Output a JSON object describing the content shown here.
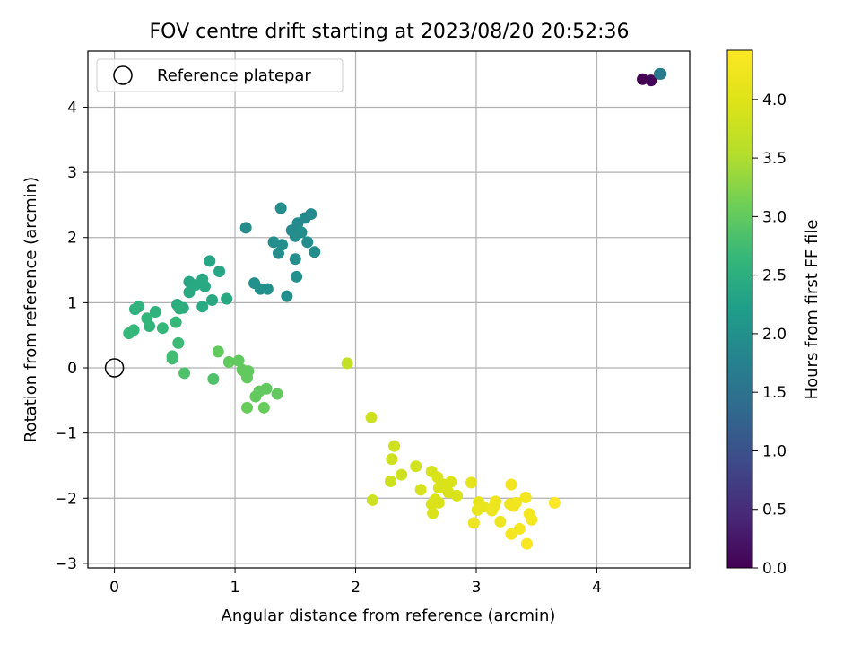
{
  "chart_data": {
    "type": "scatter",
    "title": "FOV centre drift starting at 2023/08/20 20:52:36",
    "xlabel": "Angular distance from reference (arcmin)",
    "ylabel": "Rotation from reference (arcmin)",
    "xlim": [
      -0.22,
      4.77
    ],
    "ylim": [
      -3.07,
      4.86
    ],
    "xticks": [
      0,
      1,
      2,
      3,
      4
    ],
    "xtick_labels": [
      "0",
      "1",
      "2",
      "3",
      "4"
    ],
    "yticks": [
      -3,
      -2,
      -1,
      0,
      1,
      2,
      3,
      4
    ],
    "ytick_labels": [
      "−3",
      "−2",
      "−1",
      "0",
      "1",
      "2",
      "3",
      "4"
    ],
    "grid": true,
    "legend": {
      "position": "upper-left",
      "entries": [
        "Reference platepar"
      ]
    },
    "reference_point": {
      "x": 0,
      "y": 0,
      "marker": "open-circle"
    },
    "colorbar": {
      "label": "Hours from first FF file",
      "range": [
        0,
        4.42
      ],
      "ticks": [
        0,
        0.5,
        1,
        1.5,
        2,
        2.5,
        3,
        3.5,
        4
      ],
      "tick_labels": [
        "0.0",
        "0.5",
        "1.0",
        "1.5",
        "2.0",
        "2.5",
        "3.0",
        "3.5",
        "4.0"
      ],
      "colormap": "viridis"
    },
    "points": [
      {
        "x": 4.38,
        "y": 4.43,
        "h": 0.0
      },
      {
        "x": 4.45,
        "y": 4.41,
        "h": 0.05
      },
      {
        "x": 4.52,
        "y": 4.51,
        "h": 1.6
      },
      {
        "x": 4.53,
        "y": 4.51,
        "h": 1.65
      },
      {
        "x": 1.09,
        "y": 2.15,
        "h": 1.95
      },
      {
        "x": 1.38,
        "y": 2.45,
        "h": 1.95
      },
      {
        "x": 1.58,
        "y": 2.3,
        "h": 1.9
      },
      {
        "x": 1.63,
        "y": 2.36,
        "h": 1.9
      },
      {
        "x": 1.52,
        "y": 2.22,
        "h": 1.9
      },
      {
        "x": 1.47,
        "y": 2.11,
        "h": 1.9
      },
      {
        "x": 1.55,
        "y": 2.08,
        "h": 1.95
      },
      {
        "x": 1.5,
        "y": 2.02,
        "h": 1.95
      },
      {
        "x": 1.6,
        "y": 1.93,
        "h": 1.95
      },
      {
        "x": 1.32,
        "y": 1.93,
        "h": 1.95
      },
      {
        "x": 1.39,
        "y": 1.89,
        "h": 1.95
      },
      {
        "x": 1.36,
        "y": 1.76,
        "h": 1.95
      },
      {
        "x": 1.66,
        "y": 1.78,
        "h": 1.95
      },
      {
        "x": 1.5,
        "y": 1.67,
        "h": 1.95
      },
      {
        "x": 1.51,
        "y": 1.4,
        "h": 2.0
      },
      {
        "x": 1.16,
        "y": 1.3,
        "h": 2.0
      },
      {
        "x": 1.21,
        "y": 1.21,
        "h": 2.0
      },
      {
        "x": 1.27,
        "y": 1.21,
        "h": 2.0
      },
      {
        "x": 1.43,
        "y": 1.1,
        "h": 2.0
      },
      {
        "x": 0.79,
        "y": 1.64,
        "h": 2.35
      },
      {
        "x": 0.87,
        "y": 1.48,
        "h": 2.35
      },
      {
        "x": 0.62,
        "y": 1.32,
        "h": 2.35
      },
      {
        "x": 0.73,
        "y": 1.36,
        "h": 2.4
      },
      {
        "x": 0.67,
        "y": 1.27,
        "h": 2.4
      },
      {
        "x": 0.75,
        "y": 1.25,
        "h": 2.4
      },
      {
        "x": 0.62,
        "y": 1.16,
        "h": 2.4
      },
      {
        "x": 0.81,
        "y": 1.04,
        "h": 2.4
      },
      {
        "x": 0.93,
        "y": 1.06,
        "h": 2.4
      },
      {
        "x": 0.73,
        "y": 0.94,
        "h": 2.4
      },
      {
        "x": 0.52,
        "y": 0.97,
        "h": 2.45
      },
      {
        "x": 0.57,
        "y": 0.92,
        "h": 2.45
      },
      {
        "x": 0.54,
        "y": 0.91,
        "h": 2.5
      },
      {
        "x": 0.2,
        "y": 0.94,
        "h": 2.55
      },
      {
        "x": 0.17,
        "y": 0.9,
        "h": 2.55
      },
      {
        "x": 0.34,
        "y": 0.86,
        "h": 2.55
      },
      {
        "x": 0.27,
        "y": 0.76,
        "h": 2.6
      },
      {
        "x": 0.29,
        "y": 0.64,
        "h": 2.6
      },
      {
        "x": 0.51,
        "y": 0.7,
        "h": 2.65
      },
      {
        "x": 0.4,
        "y": 0.61,
        "h": 2.65
      },
      {
        "x": 0.16,
        "y": 0.58,
        "h": 2.65
      },
      {
        "x": 0.12,
        "y": 0.53,
        "h": 2.65
      },
      {
        "x": 0.53,
        "y": 0.38,
        "h": 2.7
      },
      {
        "x": 0.48,
        "y": 0.18,
        "h": 2.75
      },
      {
        "x": 0.48,
        "y": 0.14,
        "h": 2.75
      },
      {
        "x": 0.86,
        "y": 0.25,
        "h": 3.0
      },
      {
        "x": 0.95,
        "y": 0.09,
        "h": 3.0
      },
      {
        "x": 1.03,
        "y": 0.11,
        "h": 3.0
      },
      {
        "x": 0.58,
        "y": -0.08,
        "h": 2.85
      },
      {
        "x": 0.82,
        "y": -0.17,
        "h": 2.85
      },
      {
        "x": 1.06,
        "y": -0.03,
        "h": 3.0
      },
      {
        "x": 1.09,
        "y": -0.08,
        "h": 3.0
      },
      {
        "x": 1.11,
        "y": -0.05,
        "h": 3.0
      },
      {
        "x": 1.1,
        "y": -0.15,
        "h": 3.0
      },
      {
        "x": 1.2,
        "y": -0.36,
        "h": 3.0
      },
      {
        "x": 1.26,
        "y": -0.32,
        "h": 3.0
      },
      {
        "x": 1.17,
        "y": -0.44,
        "h": 3.0
      },
      {
        "x": 1.35,
        "y": -0.4,
        "h": 3.0
      },
      {
        "x": 1.1,
        "y": -0.61,
        "h": 3.05
      },
      {
        "x": 1.24,
        "y": -0.61,
        "h": 3.05
      },
      {
        "x": 1.93,
        "y": 0.07,
        "h": 3.7
      },
      {
        "x": 2.13,
        "y": -0.76,
        "h": 3.8
      },
      {
        "x": 2.14,
        "y": -2.03,
        "h": 3.8
      },
      {
        "x": 2.32,
        "y": -1.2,
        "h": 3.8
      },
      {
        "x": 2.3,
        "y": -1.4,
        "h": 3.8
      },
      {
        "x": 2.38,
        "y": -1.64,
        "h": 3.8
      },
      {
        "x": 2.29,
        "y": -1.74,
        "h": 3.8
      },
      {
        "x": 2.5,
        "y": -1.51,
        "h": 3.85
      },
      {
        "x": 2.54,
        "y": -1.87,
        "h": 3.9
      },
      {
        "x": 2.63,
        "y": -1.59,
        "h": 3.9
      },
      {
        "x": 2.68,
        "y": -1.68,
        "h": 3.95
      },
      {
        "x": 2.79,
        "y": -1.75,
        "h": 3.95
      },
      {
        "x": 2.73,
        "y": -1.79,
        "h": 3.95
      },
      {
        "x": 2.69,
        "y": -1.84,
        "h": 3.95
      },
      {
        "x": 2.77,
        "y": -1.91,
        "h": 3.95
      },
      {
        "x": 2.84,
        "y": -1.96,
        "h": 3.95
      },
      {
        "x": 2.66,
        "y": -2.02,
        "h": 3.95
      },
      {
        "x": 2.63,
        "y": -2.09,
        "h": 3.95
      },
      {
        "x": 2.69,
        "y": -2.07,
        "h": 3.95
      },
      {
        "x": 2.64,
        "y": -2.23,
        "h": 3.95
      },
      {
        "x": 2.96,
        "y": -1.76,
        "h": 4.1
      },
      {
        "x": 3.02,
        "y": -2.06,
        "h": 4.1
      },
      {
        "x": 3.06,
        "y": -2.13,
        "h": 4.15
      },
      {
        "x": 3.01,
        "y": -2.18,
        "h": 4.15
      },
      {
        "x": 3.13,
        "y": -2.19,
        "h": 4.2
      },
      {
        "x": 3.16,
        "y": -2.05,
        "h": 4.2
      },
      {
        "x": 3.15,
        "y": -2.12,
        "h": 4.2
      },
      {
        "x": 2.98,
        "y": -2.38,
        "h": 4.2
      },
      {
        "x": 3.2,
        "y": -2.36,
        "h": 4.2
      },
      {
        "x": 3.29,
        "y": -1.79,
        "h": 4.25
      },
      {
        "x": 3.28,
        "y": -2.09,
        "h": 4.25
      },
      {
        "x": 3.33,
        "y": -2.07,
        "h": 4.25
      },
      {
        "x": 3.31,
        "y": -2.12,
        "h": 4.25
      },
      {
        "x": 3.41,
        "y": -1.99,
        "h": 4.3
      },
      {
        "x": 3.44,
        "y": -2.24,
        "h": 4.3
      },
      {
        "x": 3.46,
        "y": -2.33,
        "h": 4.3
      },
      {
        "x": 3.36,
        "y": -2.47,
        "h": 4.3
      },
      {
        "x": 3.29,
        "y": -2.55,
        "h": 4.3
      },
      {
        "x": 3.42,
        "y": -2.7,
        "h": 4.35
      },
      {
        "x": 3.65,
        "y": -2.07,
        "h": 4.4
      }
    ]
  },
  "colors": {
    "grid": "#b0b0b0",
    "axes": "#000000",
    "legend_border": "#cccccc"
  }
}
